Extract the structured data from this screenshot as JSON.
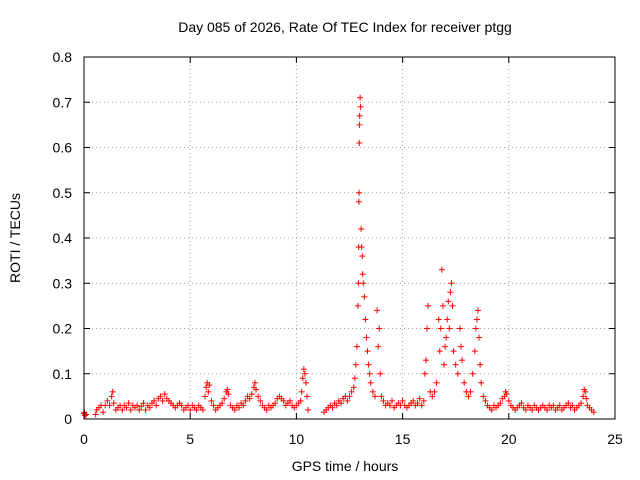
{
  "chart_data": {
    "type": "scatter",
    "title": "Day 085 of 2026, Rate Of TEC Index for receiver ptgg",
    "xlabel": "GPS time / hours",
    "ylabel": "ROTI / TECUs",
    "xlim": [
      0,
      25
    ],
    "ylim": [
      0,
      0.8
    ],
    "xticks": [
      0,
      5,
      10,
      15,
      20,
      25
    ],
    "xtick_labels": [
      "0",
      "5",
      "10",
      "15",
      "20",
      "25"
    ],
    "yticks": [
      0,
      0.1,
      0.2,
      0.3,
      0.4,
      0.5,
      0.6,
      0.7,
      0.8
    ],
    "ytick_labels": [
      "0",
      "0.1",
      "0.2",
      "0.3",
      "0.4",
      "0.5",
      "0.6",
      "0.7",
      "0.8"
    ],
    "grid": true,
    "marker": "+",
    "series": [
      {
        "name": "ROTI",
        "color": "#ff0000",
        "points": [
          [
            0.0,
            0.012
          ],
          [
            0.02,
            0.015
          ],
          [
            0.05,
            0.008
          ],
          [
            0.1,
            0.01
          ],
          [
            0.55,
            0.01
          ],
          [
            0.6,
            0.02
          ],
          [
            0.7,
            0.025
          ],
          [
            0.8,
            0.03
          ],
          [
            0.9,
            0.015
          ],
          [
            1.0,
            0.03
          ],
          [
            1.1,
            0.04
          ],
          [
            1.2,
            0.03
          ],
          [
            1.3,
            0.05
          ],
          [
            1.35,
            0.06
          ],
          [
            1.4,
            0.035
          ],
          [
            1.5,
            0.02
          ],
          [
            1.6,
            0.025
          ],
          [
            1.7,
            0.03
          ],
          [
            1.8,
            0.02
          ],
          [
            1.9,
            0.03
          ],
          [
            2.0,
            0.025
          ],
          [
            2.1,
            0.035
          ],
          [
            2.2,
            0.02
          ],
          [
            2.3,
            0.03
          ],
          [
            2.4,
            0.025
          ],
          [
            2.5,
            0.03
          ],
          [
            2.6,
            0.02
          ],
          [
            2.7,
            0.028
          ],
          [
            2.8,
            0.035
          ],
          [
            2.9,
            0.02
          ],
          [
            3.0,
            0.03
          ],
          [
            3.1,
            0.025
          ],
          [
            3.2,
            0.035
          ],
          [
            3.3,
            0.04
          ],
          [
            3.4,
            0.03
          ],
          [
            3.5,
            0.045
          ],
          [
            3.6,
            0.05
          ],
          [
            3.7,
            0.04
          ],
          [
            3.8,
            0.055
          ],
          [
            3.9,
            0.045
          ],
          [
            4.0,
            0.04
          ],
          [
            4.1,
            0.035
          ],
          [
            4.2,
            0.03
          ],
          [
            4.3,
            0.025
          ],
          [
            4.4,
            0.03
          ],
          [
            4.5,
            0.035
          ],
          [
            4.6,
            0.03
          ],
          [
            4.7,
            0.02
          ],
          [
            4.8,
            0.025
          ],
          [
            4.9,
            0.03
          ],
          [
            5.0,
            0.02
          ],
          [
            5.1,
            0.03
          ],
          [
            5.2,
            0.025
          ],
          [
            5.3,
            0.02
          ],
          [
            5.4,
            0.03
          ],
          [
            5.5,
            0.025
          ],
          [
            5.6,
            0.02
          ],
          [
            5.7,
            0.05
          ],
          [
            5.75,
            0.07
          ],
          [
            5.8,
            0.08
          ],
          [
            5.85,
            0.06
          ],
          [
            5.9,
            0.075
          ],
          [
            6.0,
            0.04
          ],
          [
            6.1,
            0.03
          ],
          [
            6.2,
            0.02
          ],
          [
            6.3,
            0.025
          ],
          [
            6.4,
            0.03
          ],
          [
            6.5,
            0.035
          ],
          [
            6.6,
            0.045
          ],
          [
            6.7,
            0.06
          ],
          [
            6.75,
            0.065
          ],
          [
            6.8,
            0.055
          ],
          [
            6.9,
            0.03
          ],
          [
            7.0,
            0.025
          ],
          [
            7.1,
            0.02
          ],
          [
            7.2,
            0.03
          ],
          [
            7.3,
            0.025
          ],
          [
            7.4,
            0.035
          ],
          [
            7.5,
            0.03
          ],
          [
            7.6,
            0.04
          ],
          [
            7.7,
            0.05
          ],
          [
            7.8,
            0.045
          ],
          [
            7.9,
            0.055
          ],
          [
            8.0,
            0.07
          ],
          [
            8.05,
            0.08
          ],
          [
            8.1,
            0.065
          ],
          [
            8.2,
            0.05
          ],
          [
            8.3,
            0.04
          ],
          [
            8.4,
            0.03
          ],
          [
            8.5,
            0.025
          ],
          [
            8.6,
            0.02
          ],
          [
            8.7,
            0.03
          ],
          [
            8.8,
            0.025
          ],
          [
            8.9,
            0.03
          ],
          [
            9.0,
            0.035
          ],
          [
            9.1,
            0.045
          ],
          [
            9.2,
            0.05
          ],
          [
            9.3,
            0.045
          ],
          [
            9.4,
            0.04
          ],
          [
            9.5,
            0.03
          ],
          [
            9.6,
            0.035
          ],
          [
            9.7,
            0.04
          ],
          [
            9.8,
            0.03
          ],
          [
            9.9,
            0.025
          ],
          [
            10.0,
            0.03
          ],
          [
            10.1,
            0.035
          ],
          [
            10.2,
            0.04
          ],
          [
            10.25,
            0.06
          ],
          [
            10.3,
            0.09
          ],
          [
            10.35,
            0.11
          ],
          [
            10.4,
            0.1
          ],
          [
            10.45,
            0.08
          ],
          [
            10.5,
            0.05
          ],
          [
            10.55,
            0.02
          ],
          [
            11.3,
            0.015
          ],
          [
            11.4,
            0.02
          ],
          [
            11.5,
            0.025
          ],
          [
            11.6,
            0.03
          ],
          [
            11.7,
            0.025
          ],
          [
            11.8,
            0.035
          ],
          [
            11.9,
            0.03
          ],
          [
            12.0,
            0.04
          ],
          [
            12.1,
            0.035
          ],
          [
            12.2,
            0.045
          ],
          [
            12.3,
            0.05
          ],
          [
            12.4,
            0.04
          ],
          [
            12.5,
            0.05
          ],
          [
            12.6,
            0.06
          ],
          [
            12.7,
            0.07
          ],
          [
            12.75,
            0.09
          ],
          [
            12.8,
            0.12
          ],
          [
            12.85,
            0.16
          ],
          [
            12.9,
            0.25
          ],
          [
            12.92,
            0.3
          ],
          [
            12.93,
            0.38
          ],
          [
            12.94,
            0.48
          ],
          [
            12.95,
            0.5
          ],
          [
            12.96,
            0.61
          ],
          [
            12.97,
            0.65
          ],
          [
            12.98,
            0.67
          ],
          [
            13.0,
            0.71
          ],
          [
            13.02,
            0.69
          ],
          [
            13.05,
            0.42
          ],
          [
            13.07,
            0.38
          ],
          [
            13.1,
            0.36
          ],
          [
            13.12,
            0.32
          ],
          [
            13.15,
            0.3
          ],
          [
            13.2,
            0.27
          ],
          [
            13.25,
            0.22
          ],
          [
            13.3,
            0.18
          ],
          [
            13.35,
            0.15
          ],
          [
            13.4,
            0.12
          ],
          [
            13.45,
            0.1
          ],
          [
            13.5,
            0.08
          ],
          [
            13.6,
            0.06
          ],
          [
            13.7,
            0.05
          ],
          [
            13.8,
            0.24
          ],
          [
            13.85,
            0.16
          ],
          [
            13.9,
            0.2
          ],
          [
            13.95,
            0.1
          ],
          [
            14.0,
            0.05
          ],
          [
            14.1,
            0.04
          ],
          [
            14.2,
            0.03
          ],
          [
            14.3,
            0.035
          ],
          [
            14.4,
            0.03
          ],
          [
            14.5,
            0.04
          ],
          [
            14.6,
            0.025
          ],
          [
            14.7,
            0.03
          ],
          [
            14.8,
            0.035
          ],
          [
            14.9,
            0.03
          ],
          [
            15.0,
            0.04
          ],
          [
            15.1,
            0.03
          ],
          [
            15.2,
            0.025
          ],
          [
            15.3,
            0.03
          ],
          [
            15.4,
            0.035
          ],
          [
            15.5,
            0.04
          ],
          [
            15.6,
            0.03
          ],
          [
            15.7,
            0.035
          ],
          [
            15.8,
            0.045
          ],
          [
            15.9,
            0.03
          ],
          [
            16.0,
            0.04
          ],
          [
            16.05,
            0.1
          ],
          [
            16.1,
            0.13
          ],
          [
            16.15,
            0.2
          ],
          [
            16.2,
            0.25
          ],
          [
            16.3,
            0.06
          ],
          [
            16.4,
            0.05
          ],
          [
            16.5,
            0.06
          ],
          [
            16.6,
            0.08
          ],
          [
            16.7,
            0.22
          ],
          [
            16.75,
            0.15
          ],
          [
            16.8,
            0.2
          ],
          [
            16.85,
            0.33
          ],
          [
            16.9,
            0.25
          ],
          [
            16.95,
            0.12
          ],
          [
            17.0,
            0.16
          ],
          [
            17.05,
            0.18
          ],
          [
            17.1,
            0.22
          ],
          [
            17.15,
            0.26
          ],
          [
            17.2,
            0.2
          ],
          [
            17.25,
            0.28
          ],
          [
            17.3,
            0.3
          ],
          [
            17.35,
            0.25
          ],
          [
            17.4,
            0.15
          ],
          [
            17.5,
            0.12
          ],
          [
            17.6,
            0.1
          ],
          [
            17.7,
            0.2
          ],
          [
            17.75,
            0.16
          ],
          [
            17.8,
            0.13
          ],
          [
            17.9,
            0.08
          ],
          [
            18.0,
            0.06
          ],
          [
            18.1,
            0.05
          ],
          [
            18.2,
            0.06
          ],
          [
            18.3,
            0.1
          ],
          [
            18.4,
            0.15
          ],
          [
            18.45,
            0.2
          ],
          [
            18.5,
            0.22
          ],
          [
            18.55,
            0.24
          ],
          [
            18.6,
            0.18
          ],
          [
            18.65,
            0.12
          ],
          [
            18.7,
            0.08
          ],
          [
            18.8,
            0.05
          ],
          [
            18.9,
            0.04
          ],
          [
            19.0,
            0.03
          ],
          [
            19.1,
            0.025
          ],
          [
            19.2,
            0.02
          ],
          [
            19.3,
            0.03
          ],
          [
            19.4,
            0.025
          ],
          [
            19.5,
            0.03
          ],
          [
            19.6,
            0.035
          ],
          [
            19.7,
            0.045
          ],
          [
            19.8,
            0.05
          ],
          [
            19.85,
            0.06
          ],
          [
            19.9,
            0.055
          ],
          [
            20.0,
            0.04
          ],
          [
            20.1,
            0.03
          ],
          [
            20.2,
            0.025
          ],
          [
            20.3,
            0.02
          ],
          [
            20.4,
            0.025
          ],
          [
            20.5,
            0.03
          ],
          [
            20.6,
            0.035
          ],
          [
            20.7,
            0.025
          ],
          [
            20.8,
            0.02
          ],
          [
            20.9,
            0.03
          ],
          [
            21.0,
            0.025
          ],
          [
            21.1,
            0.02
          ],
          [
            21.2,
            0.03
          ],
          [
            21.3,
            0.025
          ],
          [
            21.4,
            0.02
          ],
          [
            21.5,
            0.025
          ],
          [
            21.6,
            0.03
          ],
          [
            21.7,
            0.025
          ],
          [
            21.8,
            0.02
          ],
          [
            21.9,
            0.03
          ],
          [
            22.0,
            0.025
          ],
          [
            22.1,
            0.03
          ],
          [
            22.2,
            0.02
          ],
          [
            22.3,
            0.025
          ],
          [
            22.4,
            0.03
          ],
          [
            22.5,
            0.02
          ],
          [
            22.6,
            0.025
          ],
          [
            22.7,
            0.03
          ],
          [
            22.8,
            0.035
          ],
          [
            22.9,
            0.025
          ],
          [
            23.0,
            0.03
          ],
          [
            23.1,
            0.02
          ],
          [
            23.2,
            0.025
          ],
          [
            23.3,
            0.03
          ],
          [
            23.4,
            0.035
          ],
          [
            23.5,
            0.05
          ],
          [
            23.55,
            0.065
          ],
          [
            23.6,
            0.06
          ],
          [
            23.65,
            0.045
          ],
          [
            23.7,
            0.03
          ],
          [
            23.8,
            0.025
          ],
          [
            23.9,
            0.02
          ],
          [
            24.0,
            0.015
          ]
        ]
      }
    ]
  }
}
